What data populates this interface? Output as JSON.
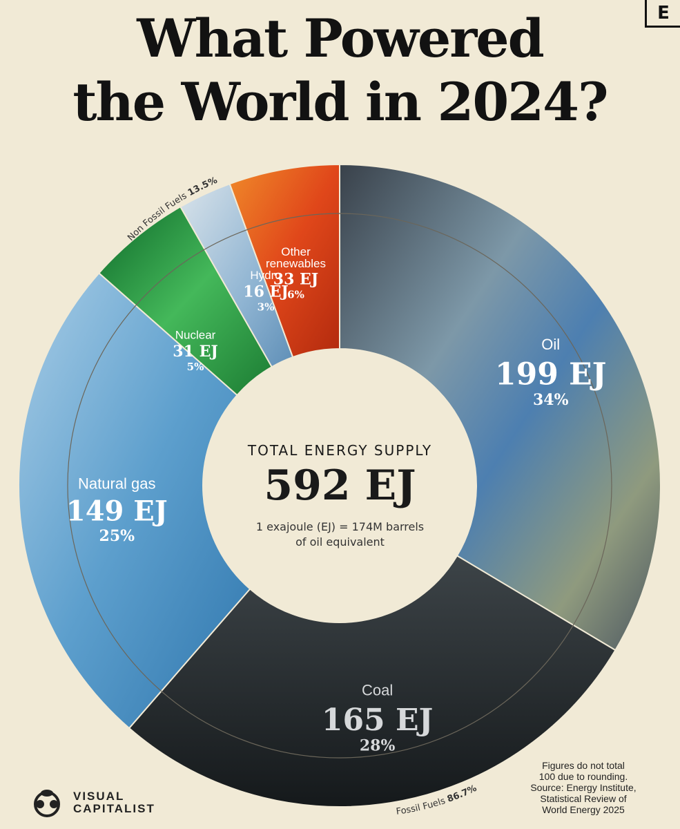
{
  "brand_badge": "E",
  "title": {
    "line1": "What Powered",
    "line2": "the World in 2024?"
  },
  "center": {
    "label": "TOTAL ENERGY SUPPLY",
    "value": "592 EJ",
    "note_line1": "1 exajoule (EJ) = 174M barrels",
    "note_line2": "of oil equivalent"
  },
  "chart_data": {
    "type": "pie",
    "variant": "donut",
    "title": "What Powered the World in 2024?",
    "unit": "EJ",
    "total": 592,
    "categories": [
      "Oil",
      "Coal",
      "Natural gas",
      "Nuclear",
      "Hydro",
      "Other renewables"
    ],
    "values": [
      199,
      165,
      149,
      31,
      16,
      33
    ],
    "percents": [
      34,
      28,
      25,
      5,
      3,
      6
    ],
    "segments": [
      {
        "name": "Oil",
        "value": 199,
        "value_label": "199 EJ",
        "pct_label": "34%",
        "color": "#5f7e93"
      },
      {
        "name": "Coal",
        "value": 165,
        "value_label": "165 EJ",
        "pct_label": "28%",
        "color": "#2a2f33"
      },
      {
        "name": "Natural gas",
        "value": 149,
        "value_label": "149 EJ",
        "pct_label": "25%",
        "color": "#6fa6cf"
      },
      {
        "name": "Nuclear",
        "value": 31,
        "value_label": "31 EJ",
        "pct_label": "5%",
        "color": "#2f9b45"
      },
      {
        "name": "Hydro",
        "value": 16,
        "value_label": "16 EJ",
        "pct_label": "3%",
        "color": "#93b9d6"
      },
      {
        "name": "Other renewables",
        "value": 33,
        "value_label": "33 EJ",
        "pct_label": "6%",
        "color": "#e0531b"
      }
    ],
    "groups": [
      {
        "label": "Non Fossil Fuels",
        "pct": "13.5%"
      },
      {
        "label": "Fossil Fuels",
        "pct": "86.7%"
      }
    ]
  },
  "footnote": {
    "line1": "Figures do not total",
    "line2": "100 due to rounding.",
    "line3": "Source: Energy Institute,",
    "line4": "Statistical Review of",
    "line5": "World Energy 2025"
  },
  "publisher": {
    "line1": "VISUAL",
    "line2": "CAPITALIST"
  },
  "colors": {
    "background": "#f1ead6",
    "text": "#121212"
  }
}
